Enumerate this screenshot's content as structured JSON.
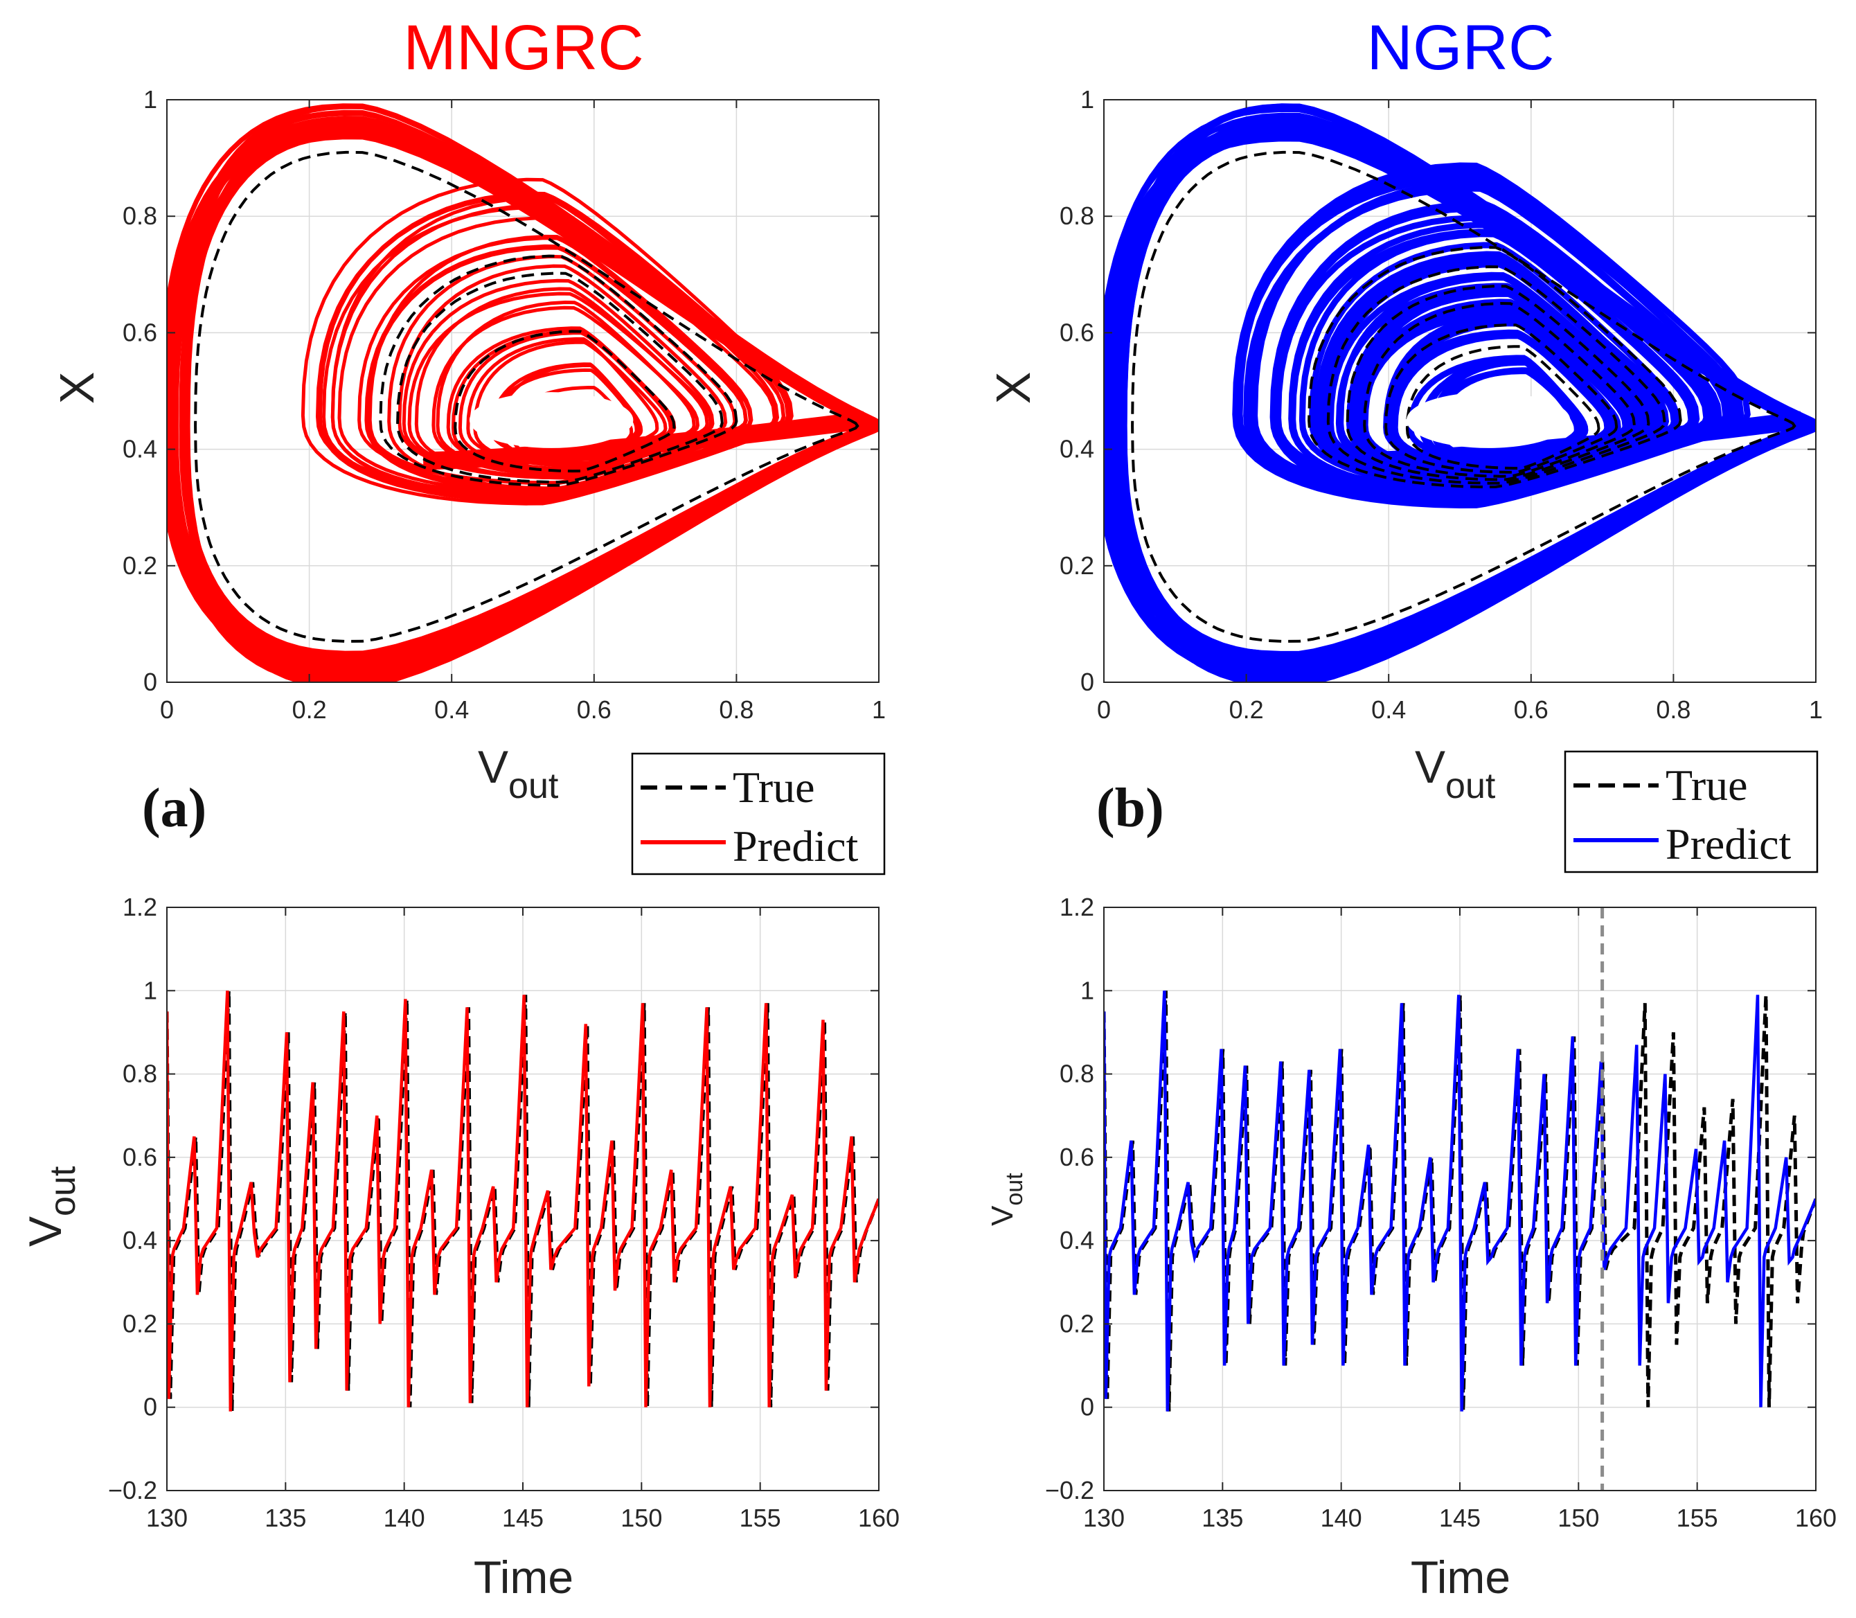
{
  "colors": {
    "mngrc": "#ff0000",
    "ngrc": "#0000ff",
    "true": "#000000",
    "grid": "#d9d9d9",
    "marker": "#8c8c8c"
  },
  "panels": {
    "a": {
      "title": "MNGRC",
      "label": "(a)",
      "legend": [
        "True",
        "Predict"
      ],
      "xlabel_main": "V",
      "xlabel_sub": "out",
      "ylabel": "X"
    },
    "b": {
      "title": "NGRC",
      "label": "(b)",
      "legend": [
        "True",
        "Predict"
      ],
      "xlabel_main": "V",
      "xlabel_sub": "out",
      "ylabel": "X"
    },
    "ts": {
      "xlabel": "Time",
      "ylabel_main": "V",
      "ylabel_sub": "out"
    }
  },
  "chart_data": [
    {
      "id": "phase-mngrc",
      "type": "line",
      "title": "MNGRC",
      "xlabel": "Vout",
      "ylabel": "X",
      "xlim": [
        0,
        1
      ],
      "ylim": [
        0,
        1
      ],
      "xticks": [
        "0",
        "0.2",
        "0.4",
        "0.6",
        "0.8",
        "1"
      ],
      "yticks": [
        "0",
        "0.2",
        "0.4",
        "0.6",
        "0.8",
        "1"
      ],
      "grid": true,
      "series": [
        {
          "name": "True",
          "style": "dashed",
          "color": "#000000"
        },
        {
          "name": "Predict",
          "style": "solid",
          "color": "#ff0000"
        }
      ],
      "legend_position": "below-right"
    },
    {
      "id": "phase-ngrc",
      "type": "line",
      "title": "NGRC",
      "xlabel": "Vout",
      "ylabel": "X",
      "xlim": [
        0,
        1
      ],
      "ylim": [
        0,
        1
      ],
      "xticks": [
        "0",
        "0.2",
        "0.4",
        "0.6",
        "0.8",
        "1"
      ],
      "yticks": [
        "0",
        "0.2",
        "0.4",
        "0.6",
        "0.8",
        "1"
      ],
      "grid": true,
      "series": [
        {
          "name": "True",
          "style": "dashed",
          "color": "#000000"
        },
        {
          "name": "Predict",
          "style": "solid",
          "color": "#0000ff"
        }
      ],
      "legend_position": "below-right"
    },
    {
      "id": "ts-mngrc",
      "type": "line",
      "xlabel": "Time",
      "ylabel": "Vout",
      "xlim": [
        130,
        160
      ],
      "ylim": [
        -0.2,
        1.2
      ],
      "xticks": [
        "130",
        "135",
        "140",
        "145",
        "150",
        "155",
        "160"
      ],
      "yticks": [
        "−0.2",
        "0",
        "0.2",
        "0.4",
        "0.6",
        "0.8",
        "1",
        "1.2"
      ],
      "grid": true,
      "spike_times": [
        130.0,
        131.2,
        132.6,
        133.6,
        135.1,
        136.2,
        137.5,
        138.9,
        140.1,
        141.2,
        142.7,
        143.8,
        145.1,
        146.1,
        147.7,
        148.8,
        150.1,
        151.3,
        152.8,
        153.8,
        155.3,
        156.4,
        157.7,
        158.9
      ],
      "spike_peaks": [
        0.95,
        0.65,
        1.0,
        0.54,
        0.9,
        0.78,
        0.95,
        0.7,
        0.98,
        0.57,
        0.96,
        0.53,
        0.99,
        0.52,
        0.92,
        0.64,
        0.97,
        0.57,
        0.96,
        0.53,
        0.97,
        0.51,
        0.93,
        0.65
      ],
      "spike_troughs": [
        0.02,
        0.27,
        -0.01,
        0.42,
        0.06,
        0.14,
        0.04,
        0.2,
        0.0,
        0.27,
        0.01,
        0.3,
        0.0,
        0.33,
        0.05,
        0.28,
        0.0,
        0.3,
        0.0,
        0.33,
        0.0,
        0.31,
        0.04,
        0.3
      ],
      "series": [
        {
          "name": "True",
          "style": "dashed",
          "color": "#000000"
        },
        {
          "name": "Predict",
          "style": "solid",
          "color": "#ff0000"
        }
      ]
    },
    {
      "id": "ts-ngrc",
      "type": "line",
      "xlabel": "Time",
      "ylabel": "Vout",
      "xlim": [
        130,
        160
      ],
      "ylim": [
        -0.2,
        1.2
      ],
      "xticks": [
        "130",
        "135",
        "140",
        "145",
        "150",
        "155",
        "160"
      ],
      "yticks": [
        "−0.2",
        "0",
        "0.2",
        "0.4",
        "0.6",
        "0.8",
        "1",
        "1.2"
      ],
      "grid": true,
      "divergence_time": 151,
      "spike_times": [
        130.0,
        131.2,
        132.6,
        133.6,
        135.0,
        136.0,
        137.5,
        138.7,
        140.0,
        141.2,
        142.6,
        143.8,
        145.0,
        146.1,
        147.5,
        148.6,
        149.8,
        151.0,
        152.5,
        153.7,
        155.0,
        156.2,
        157.6,
        158.8
      ],
      "spike_peaks": [
        0.95,
        0.64,
        1.0,
        0.54,
        0.86,
        0.82,
        0.83,
        0.81,
        0.86,
        0.63,
        0.97,
        0.6,
        0.99,
        0.54,
        0.86,
        0.8,
        0.89,
        0.83,
        0.87,
        0.8,
        0.62,
        0.64,
        0.99,
        0.6
      ],
      "spike_troughs": [
        0.02,
        0.27,
        -0.01,
        0.4,
        0.1,
        0.2,
        0.1,
        0.15,
        0.1,
        0.27,
        0.1,
        0.3,
        -0.01,
        0.35,
        0.1,
        0.25,
        0.1,
        0.33,
        0.1,
        0.25,
        0.35,
        0.3,
        0.0,
        0.35
      ],
      "series": [
        {
          "name": "True",
          "style": "dashed",
          "color": "#000000"
        },
        {
          "name": "Predict",
          "style": "solid",
          "color": "#0000ff"
        }
      ]
    }
  ]
}
